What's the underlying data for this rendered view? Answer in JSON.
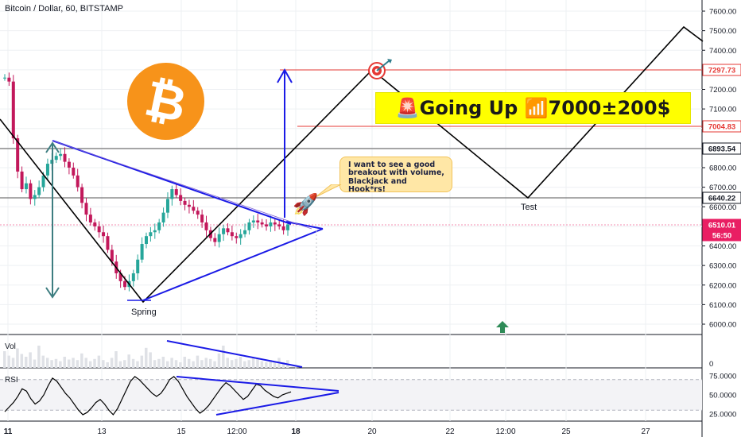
{
  "header": {
    "title": "Bitcoin / Dollar, 60, BITSTAMP"
  },
  "banner": {
    "text": "🚨Going Up 📶7000±200$"
  },
  "logo": {
    "name": "bitcoin-logo",
    "glyph": "₿",
    "color": "#f7931a"
  },
  "callout": {
    "text": "I want to see a good breakout with volume, Blackjack and Hook*rs!"
  },
  "labels": {
    "spring": "Spring",
    "test": "Test",
    "vol": "Vol",
    "rsi": "RSI"
  },
  "colors": {
    "up": "#26a69a",
    "down": "#c2185b",
    "trend": "#1a1ae6",
    "zigzag": "#000000",
    "red_line": "#e53935",
    "arrow_teal": "#3d7d80",
    "grid": "#eef0f3"
  },
  "chart_data": [
    {
      "type": "candlestick",
      "title": "Bitcoin / Dollar, 60, BITSTAMP",
      "ylim": [
        5900,
        7650
      ],
      "y_ticks": [
        "7600.00",
        "7500.00",
        "7400.00",
        "7300.00",
        "7200.00",
        "7100.00",
        "7000.00",
        "6900.00",
        "6800.00",
        "6700.00",
        "6600.00",
        "6500.00",
        "6400.00",
        "6300.00",
        "6200.00",
        "6100.00",
        "6000.00"
      ],
      "x_ticks": [
        "11",
        "13",
        "15",
        "12:00",
        "18",
        "20",
        "22",
        "12:00",
        "25",
        "27"
      ],
      "price_levels": [
        {
          "label": "7297.73",
          "style": "red"
        },
        {
          "label": "7004.83",
          "style": "red"
        },
        {
          "label": "6893.54",
          "style": "dark"
        },
        {
          "label": "6640.22",
          "style": "dark"
        },
        {
          "label": "6510.01",
          "style": "pink"
        },
        {
          "label": "56:50",
          "style": "pink"
        }
      ],
      "close_series": [
        7260,
        7240,
        6950,
        6780,
        6690,
        6720,
        6640,
        6660,
        6700,
        6760,
        6820,
        6840,
        6860,
        6870,
        6830,
        6800,
        6760,
        6700,
        6620,
        6560,
        6520,
        6500,
        6470,
        6450,
        6380,
        6320,
        6260,
        6220,
        6190,
        6220,
        6260,
        6330,
        6410,
        6450,
        6470,
        6480,
        6520,
        6570,
        6640,
        6690,
        6660,
        6630,
        6610,
        6600,
        6580,
        6560,
        6520,
        6480,
        6440,
        6420,
        6460,
        6490,
        6470,
        6450,
        6440,
        6460,
        6480,
        6520,
        6530,
        6520,
        6510,
        6500,
        6520,
        6510,
        6500,
        6480,
        6510
      ],
      "annotations": [
        "Spring",
        "Test"
      ]
    },
    {
      "type": "bar",
      "name": "Vol",
      "y_ticks": [
        "0"
      ],
      "values": [
        30,
        22,
        18,
        35,
        25,
        20,
        28,
        15,
        40,
        22,
        18,
        14,
        16,
        12,
        20,
        15,
        18,
        14,
        26,
        18,
        12,
        16,
        22,
        14,
        10,
        18,
        30,
        12,
        14,
        24,
        16,
        12,
        22,
        36,
        28,
        14,
        16,
        20,
        12,
        18,
        14,
        10,
        20,
        16,
        12,
        22,
        14,
        18,
        16,
        12,
        26,
        40,
        18,
        14,
        16,
        20,
        12,
        14,
        18,
        16,
        12,
        10,
        14,
        12,
        18,
        10,
        14
      ]
    },
    {
      "type": "line",
      "name": "RSI",
      "ylim": [
        15,
        82
      ],
      "y_ticks": [
        "75.0000",
        "50.0000",
        "25.0000"
      ],
      "values": [
        28,
        34,
        40,
        48,
        58,
        55,
        45,
        38,
        42,
        50,
        62,
        72,
        68,
        60,
        52,
        46,
        38,
        30,
        24,
        27,
        33,
        40,
        44,
        38,
        30,
        24,
        32,
        44,
        56,
        68,
        74,
        70,
        64,
        58,
        52,
        48,
        52,
        60,
        70,
        74,
        68,
        58,
        48,
        40,
        32,
        26,
        30,
        36,
        44,
        52,
        60,
        66,
        62,
        56,
        50,
        44,
        48,
        56,
        64,
        62,
        56,
        52,
        48,
        46,
        50,
        52,
        54
      ]
    }
  ]
}
